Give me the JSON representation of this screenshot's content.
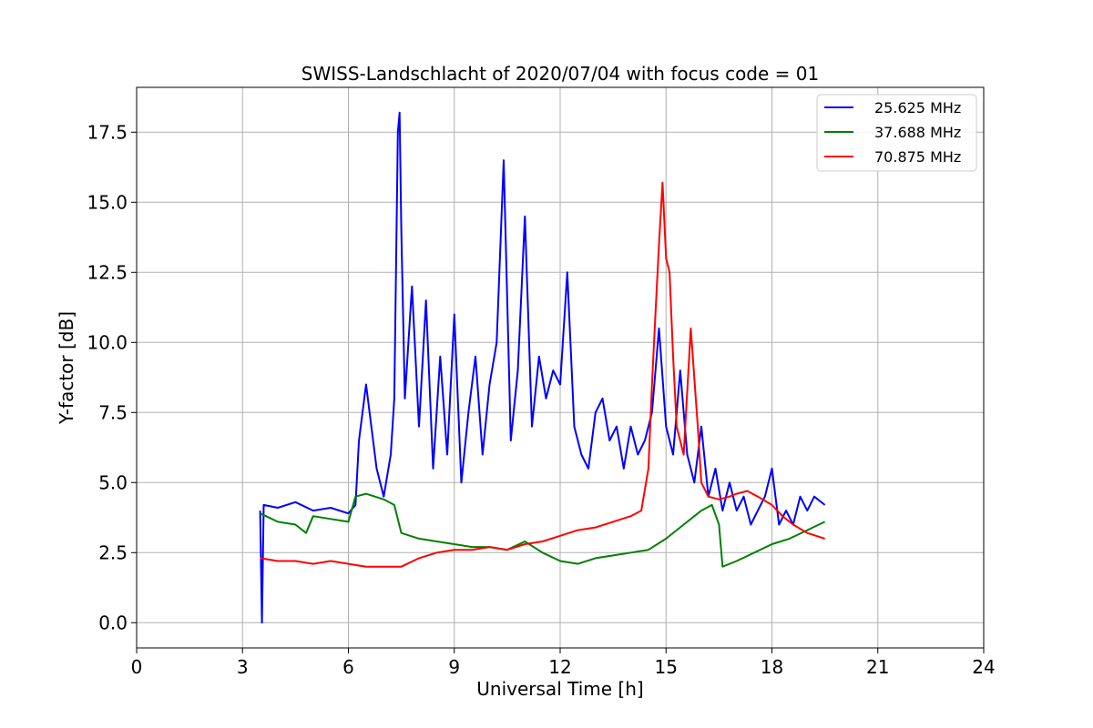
{
  "chart_data": {
    "type": "line",
    "title": "SWISS-Landschlacht of 2020/07/04 with focus code = 01",
    "xlabel": "Universal Time [h]",
    "ylabel": "Y-factor [dB]",
    "xlim": [
      0,
      24
    ],
    "ylim": [
      -0.9,
      19.1
    ],
    "xticks": [
      0,
      3,
      6,
      9,
      12,
      15,
      18,
      21,
      24
    ],
    "xtick_labels": [
      "0",
      "3",
      "6",
      "9",
      "12",
      "15",
      "18",
      "21",
      "24"
    ],
    "yticks": [
      0.0,
      2.5,
      5.0,
      7.5,
      10.0,
      12.5,
      15.0,
      17.5
    ],
    "ytick_labels": [
      "0.0",
      "2.5",
      "5.0",
      "7.5",
      "10.0",
      "12.5",
      "15.0",
      "17.5"
    ],
    "grid": true,
    "legend_position": "top-right",
    "series": [
      {
        "name": "25.625 MHz",
        "color": "#0000ff",
        "x": [
          3.5,
          3.55,
          3.6,
          4.0,
          4.5,
          5.0,
          5.5,
          6.0,
          6.2,
          6.3,
          6.5,
          6.8,
          7.0,
          7.2,
          7.3,
          7.4,
          7.45,
          7.5,
          7.6,
          7.8,
          8.0,
          8.2,
          8.4,
          8.6,
          8.8,
          9.0,
          9.2,
          9.4,
          9.6,
          9.8,
          10.0,
          10.2,
          10.4,
          10.6,
          10.8,
          11.0,
          11.2,
          11.4,
          11.6,
          11.8,
          12.0,
          12.2,
          12.4,
          12.6,
          12.8,
          13.0,
          13.2,
          13.4,
          13.6,
          13.8,
          14.0,
          14.2,
          14.4,
          14.6,
          14.8,
          15.0,
          15.2,
          15.4,
          15.6,
          15.8,
          16.0,
          16.2,
          16.4,
          16.6,
          16.8,
          17.0,
          17.2,
          17.4,
          17.6,
          17.8,
          18.0,
          18.2,
          18.4,
          18.6,
          18.8,
          19.0,
          19.2,
          19.5
        ],
        "y": [
          4.0,
          0.0,
          4.2,
          4.1,
          4.3,
          4.0,
          4.1,
          3.9,
          4.2,
          6.5,
          8.5,
          5.5,
          4.5,
          6.0,
          8.0,
          17.5,
          18.2,
          14.0,
          8.0,
          12.0,
          7.0,
          11.5,
          5.5,
          9.5,
          6.0,
          11.0,
          5.0,
          7.5,
          9.5,
          6.0,
          8.5,
          10.0,
          16.5,
          6.5,
          9.0,
          14.5,
          7.0,
          9.5,
          8.0,
          9.0,
          8.5,
          12.5,
          7.0,
          6.0,
          5.5,
          7.5,
          8.0,
          6.5,
          7.0,
          5.5,
          7.0,
          6.0,
          6.5,
          7.5,
          10.5,
          7.0,
          6.0,
          9.0,
          6.0,
          5.0,
          7.0,
          4.5,
          5.5,
          4.0,
          5.0,
          4.0,
          4.5,
          3.5,
          4.0,
          4.5,
          5.5,
          3.5,
          4.0,
          3.5,
          4.5,
          4.0,
          4.5,
          4.2
        ]
      },
      {
        "name": "37.688 MHz",
        "color": "#008000",
        "x": [
          3.5,
          4.0,
          4.5,
          4.8,
          5.0,
          5.5,
          6.0,
          6.2,
          6.5,
          7.0,
          7.3,
          7.5,
          8.0,
          8.5,
          9.0,
          9.5,
          10.0,
          10.5,
          11.0,
          11.5,
          12.0,
          12.5,
          13.0,
          13.5,
          14.0,
          14.5,
          15.0,
          15.5,
          16.0,
          16.3,
          16.5,
          16.6,
          17.0,
          17.5,
          18.0,
          18.5,
          19.0,
          19.5
        ],
        "y": [
          3.9,
          3.6,
          3.5,
          3.2,
          3.8,
          3.7,
          3.6,
          4.5,
          4.6,
          4.4,
          4.2,
          3.2,
          3.0,
          2.9,
          2.8,
          2.7,
          2.7,
          2.6,
          2.9,
          2.5,
          2.2,
          2.1,
          2.3,
          2.4,
          2.5,
          2.6,
          3.0,
          3.5,
          4.0,
          4.2,
          3.5,
          2.0,
          2.2,
          2.5,
          2.8,
          3.0,
          3.3,
          3.6
        ]
      },
      {
        "name": "70.875 MHz",
        "color": "#ff0000",
        "x": [
          3.5,
          4.0,
          4.5,
          5.0,
          5.5,
          6.0,
          6.5,
          7.0,
          7.5,
          8.0,
          8.5,
          9.0,
          9.5,
          10.0,
          10.5,
          11.0,
          11.5,
          12.0,
          12.5,
          13.0,
          13.5,
          14.0,
          14.3,
          14.5,
          14.6,
          14.7,
          14.8,
          14.9,
          15.0,
          15.1,
          15.2,
          15.3,
          15.5,
          15.7,
          15.9,
          16.0,
          16.2,
          16.5,
          16.8,
          17.0,
          17.3,
          17.6,
          18.0,
          18.3,
          18.6,
          19.0,
          19.5
        ],
        "y": [
          2.3,
          2.2,
          2.2,
          2.1,
          2.2,
          2.1,
          2.0,
          2.0,
          2.0,
          2.3,
          2.5,
          2.6,
          2.6,
          2.7,
          2.6,
          2.8,
          2.9,
          3.1,
          3.3,
          3.4,
          3.6,
          3.8,
          4.0,
          5.5,
          8.5,
          11.0,
          13.5,
          15.7,
          13.0,
          12.5,
          9.5,
          7.0,
          6.0,
          10.5,
          7.0,
          5.0,
          4.5,
          4.4,
          4.5,
          4.6,
          4.7,
          4.5,
          4.2,
          3.8,
          3.5,
          3.2,
          3.0
        ]
      }
    ]
  }
}
